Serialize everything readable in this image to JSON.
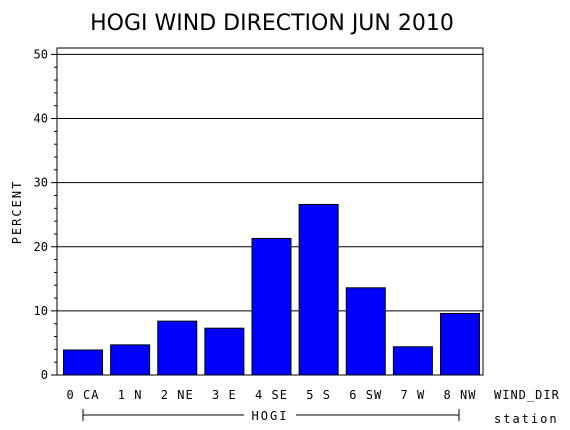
{
  "chart_data": {
    "type": "bar",
    "title": "HOGI WIND DIRECTION JUN 2010",
    "ylabel": "PERCENT",
    "xlabel": "WIND_DIR",
    "group_axis_label": "station",
    "group_label": "HOGI",
    "categories": [
      "0 CA",
      "1 N",
      "2 NE",
      "3 E",
      "4 SE",
      "5 S",
      "6 SW",
      "7 W",
      "8 NW"
    ],
    "values": [
      3.9,
      4.7,
      8.4,
      7.3,
      21.3,
      26.6,
      13.6,
      4.4,
      9.6
    ],
    "ylim": [
      0,
      51
    ],
    "yticks": [
      "0",
      "10",
      "20",
      "30",
      "40",
      "50"
    ],
    "grid": true,
    "bar_color": "#0000ff"
  }
}
